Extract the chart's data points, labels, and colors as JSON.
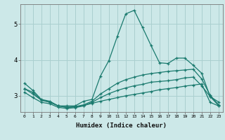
{
  "xlabel": "Humidex (Indice chaleur)",
  "bg_color": "#cce8e8",
  "grid_color": "#aacfcf",
  "line_color": "#1a7a6e",
  "xlim": [
    -0.5,
    23.5
  ],
  "ylim": [
    2.55,
    5.55
  ],
  "yticks": [
    3,
    4,
    5
  ],
  "xticks": [
    0,
    1,
    2,
    3,
    4,
    5,
    6,
    7,
    8,
    9,
    10,
    11,
    12,
    13,
    14,
    15,
    16,
    17,
    18,
    19,
    20,
    21,
    22,
    23
  ],
  "series": [
    {
      "x": [
        0,
        1,
        2,
        3,
        4,
        5,
        6,
        7,
        8,
        9,
        10,
        11,
        12,
        13,
        14,
        15,
        16,
        17,
        18,
        19,
        20,
        21,
        22,
        23
      ],
      "y": [
        3.35,
        3.15,
        2.9,
        2.85,
        2.72,
        2.72,
        2.72,
        2.85,
        2.9,
        3.55,
        3.98,
        4.65,
        5.28,
        5.38,
        4.9,
        4.4,
        3.92,
        3.9,
        4.05,
        4.05,
        3.85,
        3.63,
        2.98,
        2.83
      ]
    },
    {
      "x": [
        0,
        1,
        2,
        3,
        4,
        5,
        6,
        7,
        8,
        9,
        10,
        11,
        12,
        13,
        14,
        15,
        16,
        17,
        18,
        19,
        20,
        21,
        22,
        23
      ],
      "y": [
        3.2,
        3.05,
        2.88,
        2.83,
        2.72,
        2.68,
        2.7,
        2.75,
        2.85,
        3.05,
        3.2,
        3.35,
        3.45,
        3.52,
        3.58,
        3.62,
        3.65,
        3.68,
        3.7,
        3.72,
        3.74,
        3.47,
        3.02,
        2.75
      ]
    },
    {
      "x": [
        0,
        1,
        2,
        3,
        4,
        5,
        6,
        7,
        8,
        9,
        10,
        11,
        12,
        13,
        14,
        15,
        16,
        17,
        18,
        19,
        20,
        21,
        22,
        23
      ],
      "y": [
        3.1,
        2.95,
        2.82,
        2.78,
        2.68,
        2.65,
        2.67,
        2.72,
        2.82,
        2.95,
        3.06,
        3.15,
        3.22,
        3.28,
        3.32,
        3.38,
        3.4,
        3.42,
        3.45,
        3.5,
        3.52,
        3.28,
        2.98,
        2.73
      ]
    },
    {
      "x": [
        0,
        1,
        2,
        3,
        4,
        5,
        6,
        7,
        8,
        9,
        10,
        11,
        12,
        13,
        14,
        15,
        16,
        17,
        18,
        19,
        20,
        21,
        22,
        23
      ],
      "y": [
        3.2,
        3.1,
        2.88,
        2.82,
        2.72,
        2.68,
        2.69,
        2.73,
        2.79,
        2.85,
        2.9,
        2.95,
        3.0,
        3.04,
        3.08,
        3.12,
        3.17,
        3.2,
        3.23,
        3.27,
        3.3,
        3.33,
        2.82,
        2.72
      ]
    }
  ]
}
